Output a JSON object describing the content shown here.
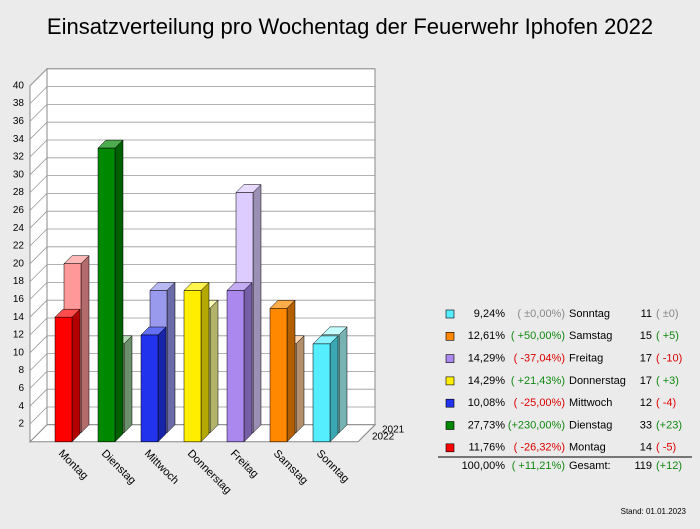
{
  "chart_data": {
    "type": "bar3d",
    "title": "Einsatzverteilung pro Wochentag der Feuerwehr Iphofen 2022",
    "categories": [
      "Montag",
      "Dienstag",
      "Mittwoch",
      "Donnerstag",
      "Freitag",
      "Samstag",
      "Sonntag"
    ],
    "series": [
      {
        "name": "2021",
        "colors": [
          "#ff9999",
          "#99cc99",
          "#9999ee",
          "#ffff99",
          "#ddccff",
          "#ffcc99",
          "#aaffff"
        ],
        "values": [
          19,
          10,
          16,
          14,
          27,
          10,
          11
        ]
      },
      {
        "name": "2022",
        "colors": [
          "#ff0000",
          "#008800",
          "#2233ee",
          "#ffee00",
          "#aa88ee",
          "#ff8800",
          "#55eeff"
        ],
        "values": [
          14,
          33,
          12,
          17,
          17,
          15,
          11
        ]
      }
    ],
    "ylim": [
      0,
      40
    ],
    "yticks": [
      2,
      4,
      6,
      8,
      10,
      12,
      14,
      16,
      18,
      20,
      22,
      24,
      26,
      28,
      30,
      32,
      34,
      36,
      38,
      40
    ],
    "grid": true
  },
  "legend_table": {
    "rows": [
      {
        "share": "9,24%",
        "change_pct": "( ±0,00%)",
        "name": "Sonntag",
        "count": "11",
        "change": "( ±0)"
      },
      {
        "share": "12,61%",
        "change_pct": "( +50,00%)",
        "name": "Samstag",
        "count": "15",
        "change": "( +5)"
      },
      {
        "share": "14,29%",
        "change_pct": "( -37,04%)",
        "name": "Freitag",
        "count": "17",
        "change": "( -10)"
      },
      {
        "share": "14,29%",
        "change_pct": "( +21,43%)",
        "name": "Donnerstag",
        "count": "17",
        "change": "( +3)"
      },
      {
        "share": "10,08%",
        "change_pct": "( -25,00%)",
        "name": "Mittwoch",
        "count": "12",
        "change": "( -4)"
      },
      {
        "share": "27,73%",
        "change_pct": "(+230,00%)",
        "name": "Dienstag",
        "count": "33",
        "change": "(+23)"
      },
      {
        "share": "11,76%",
        "change_pct": "( -26,32%)",
        "name": "Montag",
        "count": "14",
        "change": "( -5)"
      }
    ],
    "total": {
      "share": "100,00%",
      "change_pct": "( +11,21%)",
      "label": "Gesamt:",
      "count": "119",
      "change": "(+12)"
    }
  },
  "footer": "Stand: 01.01.2023"
}
